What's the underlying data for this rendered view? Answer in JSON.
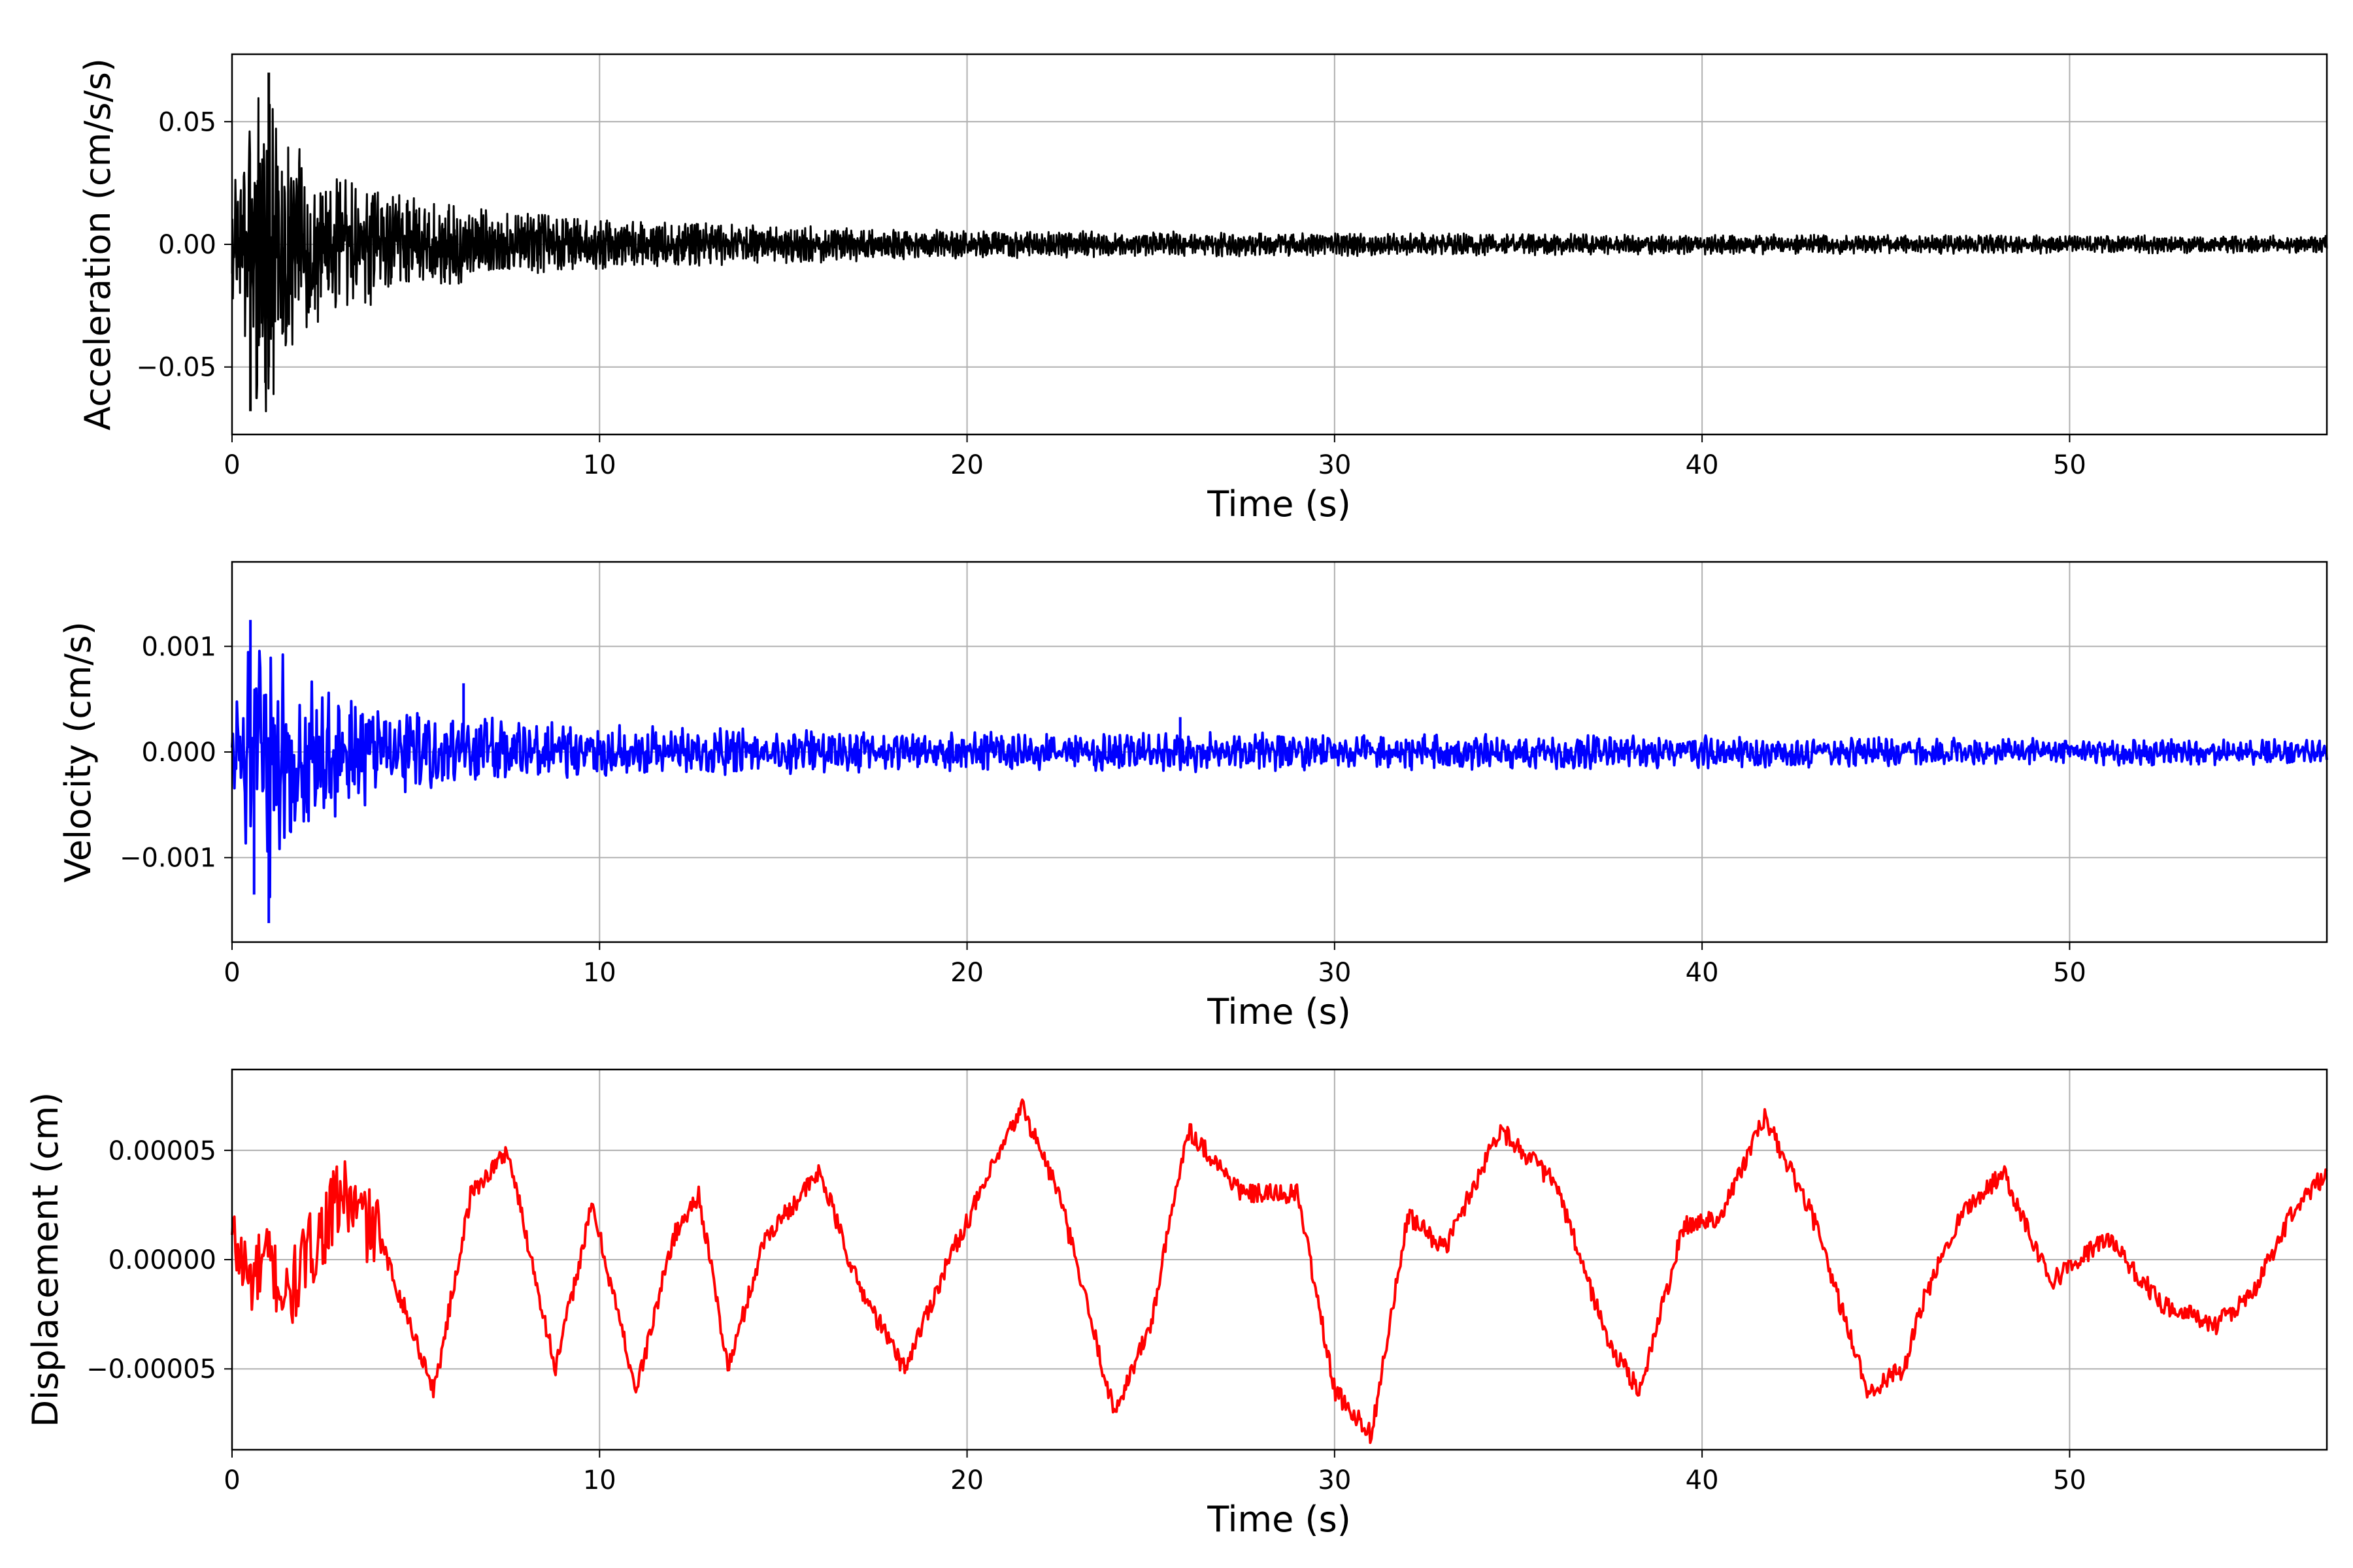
{
  "chart_data": [
    {
      "type": "line",
      "title": "",
      "xlabel": "Time (s)",
      "ylabel": "Acceleration (cm/s/s)",
      "xlim": [
        0,
        57
      ],
      "ylim": [
        -0.0775,
        0.0775
      ],
      "xticks": [
        0,
        10,
        20,
        30,
        40,
        50
      ],
      "xtick_labels": [
        "0",
        "10",
        "20",
        "30",
        "40",
        "50"
      ],
      "yticks": [
        -0.05,
        0.0,
        0.05
      ],
      "ytick_labels": [
        "−0.05",
        "0.00",
        "0.05"
      ],
      "grid": true,
      "color": "#000000",
      "envelope": {
        "t": [
          0,
          0.5,
          1,
          1.5,
          2,
          3,
          4,
          5,
          6,
          8,
          10,
          12,
          15,
          20,
          25,
          30,
          35,
          40,
          45,
          50,
          57
        ],
        "amp": [
          0.02,
          0.045,
          0.07,
          0.04,
          0.03,
          0.025,
          0.02,
          0.016,
          0.014,
          0.011,
          0.009,
          0.008,
          0.0065,
          0.005,
          0.0045,
          0.004,
          0.0038,
          0.0035,
          0.0033,
          0.0032,
          0.003
        ]
      },
      "peaks": [
        {
          "x": 0.5,
          "y": -0.068
        },
        {
          "x": 1.0,
          "y": 0.07
        },
        {
          "x": 1.0,
          "y": -0.05
        }
      ]
    },
    {
      "type": "line",
      "title": "",
      "xlabel": "Time (s)",
      "ylabel": "Velocity (cm/s)",
      "xlim": [
        0,
        57
      ],
      "ylim": [
        -0.0018,
        0.0018
      ],
      "xticks": [
        0,
        10,
        20,
        30,
        40,
        50
      ],
      "xtick_labels": [
        "0",
        "10",
        "20",
        "30",
        "40",
        "50"
      ],
      "yticks": [
        -0.001,
        0.0,
        0.001
      ],
      "ytick_labels": [
        "−0.001",
        "0.000",
        "0.001"
      ],
      "grid": true,
      "color": "#0000ff",
      "envelope": {
        "t": [
          0,
          0.5,
          1,
          1.5,
          2,
          3,
          4,
          5,
          6,
          8,
          10,
          12,
          15,
          20,
          25,
          30,
          35,
          40,
          45,
          50,
          57
        ],
        "amp": [
          0.0004,
          0.0009,
          0.0013,
          0.0008,
          0.0006,
          0.0005,
          0.0004,
          0.00035,
          0.0003,
          0.00026,
          0.00022,
          0.0002,
          0.00018,
          0.00016,
          0.00016,
          0.00015,
          0.00014,
          0.00013,
          0.00012,
          0.00011,
          0.0001
        ]
      },
      "peaks": [
        {
          "x": 0.5,
          "y": 0.00125
        },
        {
          "x": 0.6,
          "y": -0.00135
        },
        {
          "x": 1.0,
          "y": -0.00162
        },
        {
          "x": 6.3,
          "y": 0.00065
        },
        {
          "x": 25.8,
          "y": 0.00033
        }
      ]
    },
    {
      "type": "line",
      "title": "",
      "xlabel": "Time (s)",
      "ylabel": "Displacement (cm)",
      "xlim": [
        0,
        57
      ],
      "ylim": [
        -8.7e-05,
        8.7e-05
      ],
      "xticks": [
        0,
        10,
        20,
        30,
        40,
        50
      ],
      "xtick_labels": [
        "0",
        "10",
        "20",
        "30",
        "40",
        "50"
      ],
      "yticks": [
        -5e-05,
        0.0,
        5e-05
      ],
      "ytick_labels": [
        "−0.00005",
        "0.00000",
        "0.00005"
      ],
      "grid": true,
      "color": "#ff0000",
      "x": [
        0,
        0.5,
        1.0,
        1.5,
        2.0,
        3.0,
        4.0,
        5.5,
        6.5,
        7.5,
        8.8,
        9.8,
        11.0,
        12.0,
        12.7,
        13.5,
        14.5,
        16.0,
        17.0,
        18.3,
        19.5,
        21.5,
        22.5,
        24.0,
        25.0,
        26.0,
        27.5,
        29.0,
        30.0,
        31.0,
        32.0,
        33.0,
        34.5,
        36.0,
        37.5,
        38.3,
        39.5,
        40.5,
        41.7,
        43.0,
        44.5,
        45.5,
        46.0,
        47.0,
        48.2,
        49.5,
        51.0,
        52.5,
        54.0,
        55.0,
        56.0,
        57.0
      ],
      "y": [
        1e-05,
        -1e-05,
        0.0,
        -2e-05,
        0.0,
        3e-05,
        1e-05,
        -6e-05,
        3e-05,
        5e-05,
        -5e-05,
        2.5e-05,
        -6e-05,
        1e-05,
        3e-05,
        -5e-05,
        1e-05,
        4e-05,
        -1e-05,
        -5e-05,
        0.0,
        7e-05,
        3e-05,
        -7e-05,
        -3e-05,
        6e-05,
        3e-05,
        3e-05,
        -6e-05,
        -8e-05,
        2e-05,
        5e-06,
        6e-05,
        3.5e-05,
        -4e-05,
        -6e-05,
        1.5e-05,
        2e-05,
        6.5e-05,
        2e-05,
        -6e-05,
        -5e-05,
        -2e-05,
        2e-05,
        4e-05,
        -1e-05,
        1e-05,
        -2e-05,
        -3e-05,
        -1.5e-05,
        2e-05,
        4e-05
      ]
    }
  ]
}
